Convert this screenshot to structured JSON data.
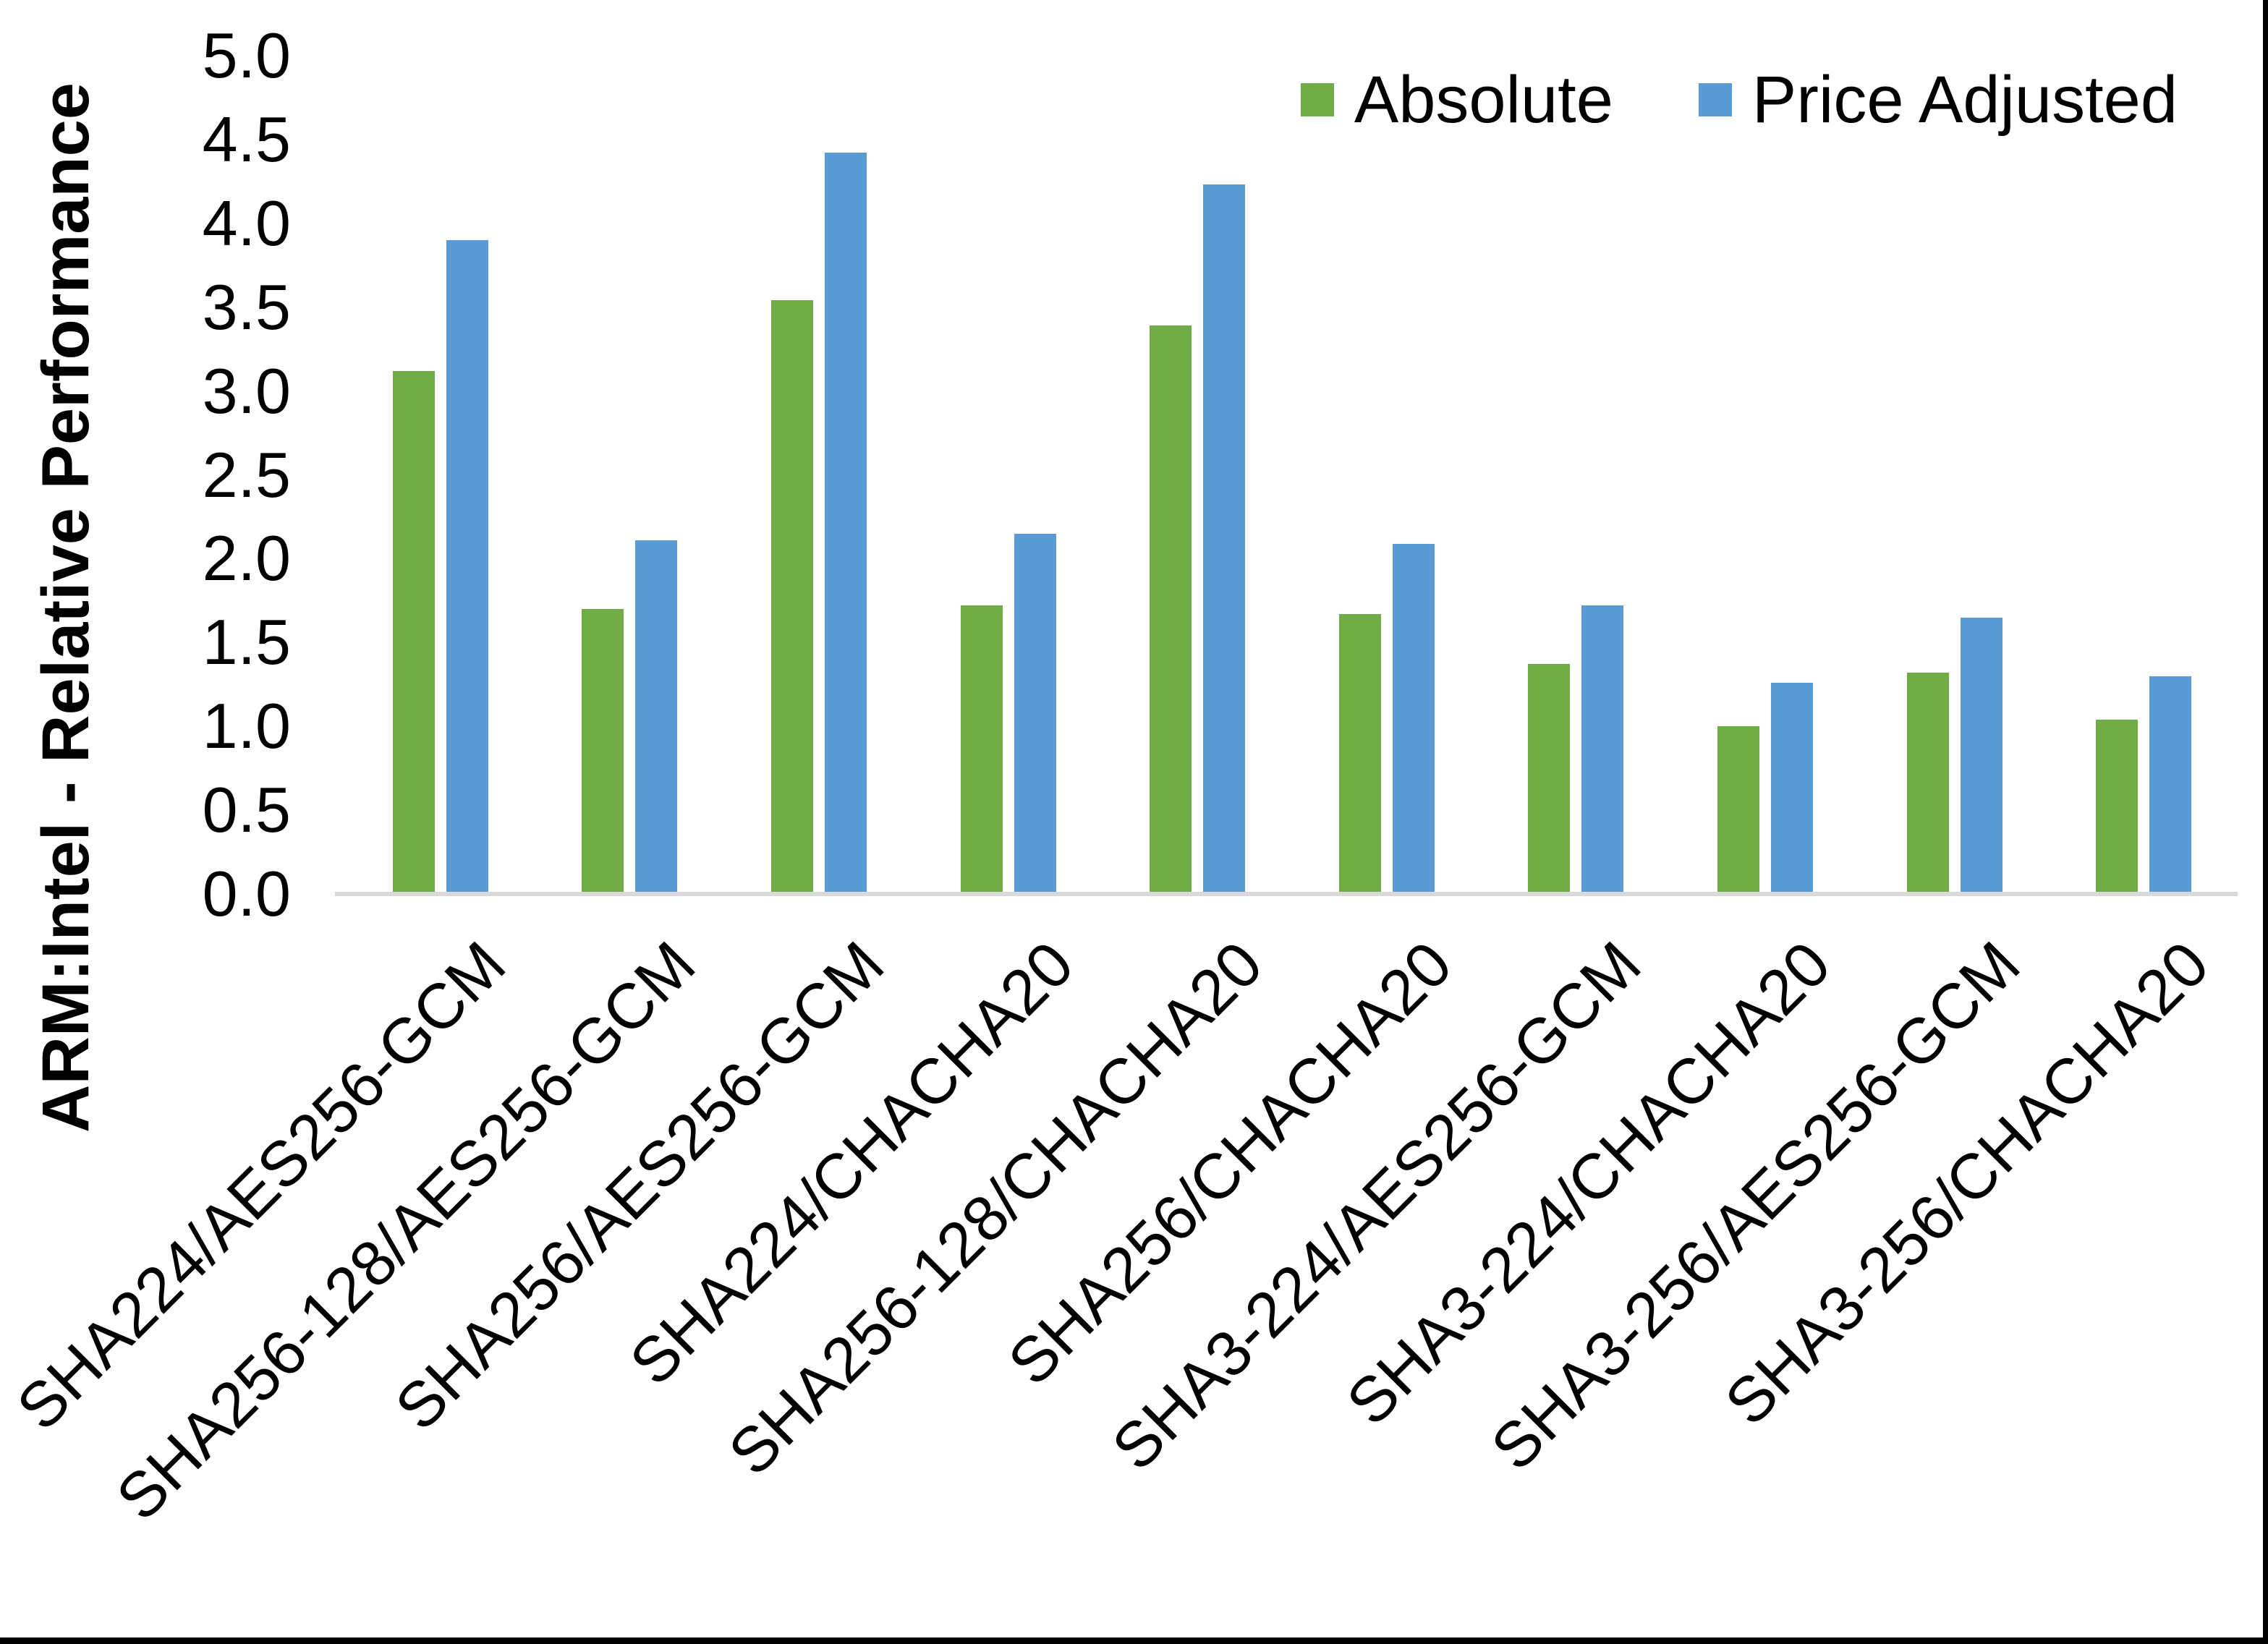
{
  "chart_data": {
    "type": "bar",
    "title": "",
    "ylabel": "ARM:Intel - Relative Performance",
    "xlabel": "",
    "categories": [
      "SHA224/AES256-GCM",
      "SHA256-128/AES256-GCM",
      "SHA256/AES256-GCM",
      "SHA224/CHACHA20",
      "SHA256-128/CHACHA20",
      "SHA256/CHACHA20",
      "SHA3-224/AES256-GCM",
      "SHA3-224/CHACHA20",
      "SHA3-256/AES256-GCM",
      "SHA3-256/CHACHA20"
    ],
    "series": [
      {
        "name": "Absolute",
        "color": "#70AD47",
        "values": [
          3.12,
          1.7,
          3.54,
          1.72,
          3.39,
          1.67,
          1.37,
          1.0,
          1.32,
          1.04
        ]
      },
      {
        "name": "Price Adjusted",
        "color": "#5B9BD5",
        "values": [
          3.9,
          2.11,
          4.42,
          2.15,
          4.23,
          2.09,
          1.72,
          1.26,
          1.65,
          1.3
        ]
      }
    ],
    "ylim": [
      0.0,
      5.0
    ],
    "ytick_step": 0.5,
    "yticks": [
      "0.0",
      "0.5",
      "1.0",
      "1.5",
      "2.0",
      "2.5",
      "3.0",
      "3.5",
      "4.0",
      "4.5",
      "5.0"
    ],
    "grid": false,
    "legend_position": "top-right",
    "axis_line_color": "#D9D9D9",
    "text_color": "#000000"
  }
}
